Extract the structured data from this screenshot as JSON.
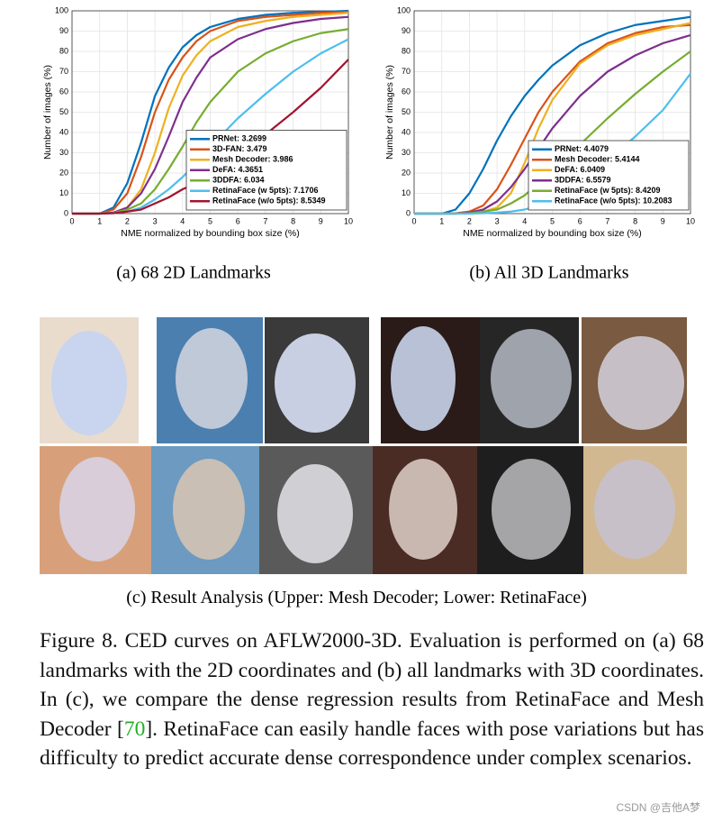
{
  "chart_data": [
    {
      "type": "line",
      "title": "(a)  68 2D Landmarks",
      "xlabel": "NME normalized by bounding box size (%)",
      "ylabel": "Number of images (%)",
      "x": [
        0,
        1,
        1.5,
        2,
        2.5,
        3,
        3.5,
        4,
        4.5,
        5,
        6,
        7,
        8,
        9,
        10
      ],
      "xlim": [
        0,
        10
      ],
      "xticks": [
        0,
        1,
        2,
        3,
        4,
        5,
        6,
        7,
        8,
        9,
        10
      ],
      "ylim": [
        0,
        100
      ],
      "yticks": [
        0,
        10,
        20,
        30,
        40,
        50,
        60,
        70,
        80,
        90,
        100
      ],
      "grid": true,
      "legend": "lower right",
      "series": [
        {
          "name": "PRNet: 3.2699",
          "color": "#0072bd",
          "values": [
            0,
            0,
            3,
            15,
            35,
            58,
            72,
            82,
            88,
            92,
            96,
            98,
            99,
            99.5,
            100
          ]
        },
        {
          "name": "3D-FAN: 3.479",
          "color": "#d95319",
          "values": [
            0,
            0,
            2,
            10,
            28,
            50,
            66,
            77,
            85,
            90,
            95,
            97,
            98,
            99,
            99.5
          ]
        },
        {
          "name": "Mesh Decoder: 3.986",
          "color": "#edb120",
          "values": [
            0,
            0,
            0.5,
            3,
            12,
            30,
            52,
            68,
            78,
            85,
            92,
            95,
            97,
            98,
            99
          ]
        },
        {
          "name": "DeFA: 4.3651",
          "color": "#7e2f8e",
          "values": [
            0,
            0,
            0.5,
            3,
            10,
            22,
            38,
            55,
            67,
            77,
            86,
            91,
            94,
            96,
            97
          ]
        },
        {
          "name": "3DDFA: 6.034",
          "color": "#77ac30",
          "values": [
            0,
            0,
            0.3,
            2,
            5,
            12,
            22,
            33,
            45,
            55,
            70,
            79,
            85,
            89,
            91
          ]
        },
        {
          "name": "RetinaFace (w 5pts): 7.1706",
          "color": "#4dbeee",
          "values": [
            0,
            0,
            0.2,
            1,
            3,
            7,
            12,
            18,
            25,
            33,
            47,
            59,
            70,
            79,
            86
          ]
        },
        {
          "name": "RetinaFace (w/o 5pts): 8.5349",
          "color": "#a2142f",
          "values": [
            0,
            0,
            0.2,
            1,
            2,
            5,
            8,
            12,
            15,
            20,
            29,
            39,
            50,
            62,
            76
          ]
        }
      ]
    },
    {
      "type": "line",
      "title": "(b)  All 3D Landmarks",
      "xlabel": "NME normalized by bounding box size (%)",
      "ylabel": "Number of images (%)",
      "x": [
        0,
        1,
        1.5,
        2,
        2.5,
        3,
        3.5,
        4,
        4.5,
        5,
        6,
        7,
        8,
        9,
        10
      ],
      "xlim": [
        0,
        10
      ],
      "xticks": [
        0,
        1,
        2,
        3,
        4,
        5,
        6,
        7,
        8,
        9,
        10
      ],
      "ylim": [
        0,
        100
      ],
      "yticks": [
        0,
        10,
        20,
        30,
        40,
        50,
        60,
        70,
        80,
        90,
        100
      ],
      "grid": true,
      "legend": "lower right",
      "series": [
        {
          "name": "PRNet: 4.4079",
          "color": "#0072bd",
          "values": [
            0,
            0,
            2,
            10,
            22,
            36,
            48,
            58,
            66,
            73,
            83,
            89,
            93,
            95,
            97
          ]
        },
        {
          "name": "Mesh Decoder: 5.4144",
          "color": "#d95319",
          "values": [
            0,
            0,
            0.2,
            1,
            4,
            12,
            24,
            37,
            50,
            60,
            75,
            84,
            89,
            92,
            93
          ]
        },
        {
          "name": "DeFA: 6.0409",
          "color": "#edb120",
          "values": [
            0,
            0,
            0,
            0.2,
            1,
            3,
            10,
            25,
            42,
            56,
            74,
            83,
            88,
            91,
            94
          ]
        },
        {
          "name": "3DDFA: 6.5579",
          "color": "#7e2f8e",
          "values": [
            0,
            0,
            0,
            0.5,
            2,
            6,
            13,
            22,
            32,
            42,
            58,
            70,
            78,
            84,
            88
          ]
        },
        {
          "name": "RetinaFace (w 5pts): 8.4209",
          "color": "#77ac30",
          "values": [
            0,
            0,
            0,
            0.2,
            1,
            2,
            5,
            9,
            15,
            21,
            34,
            47,
            59,
            70,
            80
          ]
        },
        {
          "name": "RetinaFace (w/o 5pts): 10.2083",
          "color": "#4dbeee",
          "values": [
            0,
            0,
            0,
            0,
            0.2,
            0.5,
            1,
            2,
            4,
            7,
            15,
            26,
            38,
            51,
            69
          ]
        }
      ]
    }
  ],
  "panel_c": {
    "caption": "(c)  Result Analysis (Upper: Mesh Decoder; Lower: RetinaFace)"
  },
  "figure_caption": {
    "before": "Figure 8. CED curves on AFLW2000-3D. Evaluation is performed on (a) 68 landmarks with the 2D coordinates and (b) all landmarks with 3D coordinates. In (c), we compare the dense regression results from RetinaFace and Mesh Decoder [",
    "ref": "70",
    "after": "]. RetinaFace can easily handle faces with pose variations but has difficulty to predict accurate dense correspondence under complex scenarios."
  },
  "watermark": "CSDN @吉他A梦"
}
